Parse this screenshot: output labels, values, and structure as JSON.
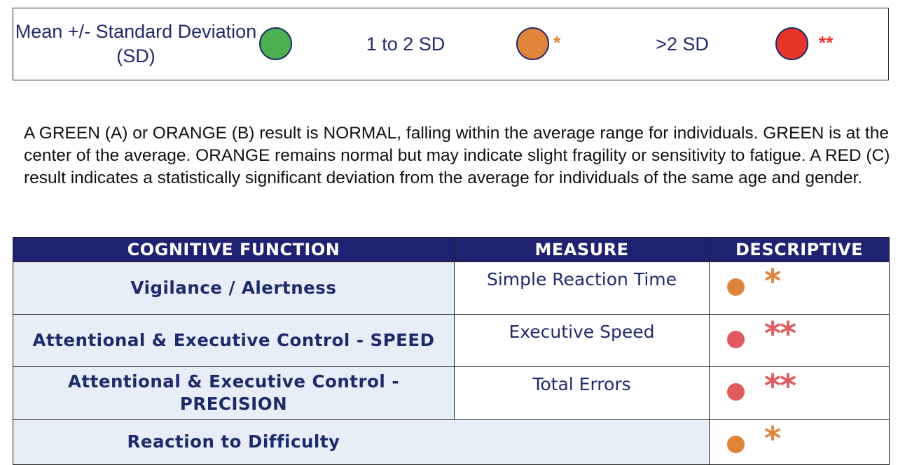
{
  "legend": {
    "items": [
      {
        "label": "Mean +/- Standard Deviation (SD)",
        "color": "#4caf50",
        "mark": "",
        "mark_color": ""
      },
      {
        "label": "1 to 2 SD",
        "color": "#e0843a",
        "mark": "*",
        "mark_color": "#e0843a"
      },
      {
        "label": ">2 SD",
        "color": "#e8352a",
        "mark": "**",
        "mark_color": "#e8352a"
      }
    ]
  },
  "note": {
    "text": "A GREEN (A) or ORANGE (B) result is NORMAL, falling within the average range for individuals. GREEN is at the center of the average. ORANGE remains normal but may indicate slight fragility or sensitivity to fatigue. A RED (C) result indicates a statistically significant deviation from the average for individuals of the same age and gender."
  },
  "table": {
    "headers": {
      "function": "COGNITIVE FUNCTION",
      "measure": "MEASURE",
      "descriptive": "DESCRIPTIVE"
    },
    "rows": [
      {
        "function": "Vigilance / Alertness",
        "measure": "Simple Reaction Time",
        "dot_color": "#e0843a",
        "mark": "*",
        "mark_color": "#e0843a"
      },
      {
        "function": "Attentional & Executive Control - SPEED",
        "measure": "Executive Speed",
        "dot_color": "#e05a5e",
        "mark": "**",
        "mark_color": "#e05a5e"
      },
      {
        "function": "Attentional & Executive Control - PRECISION",
        "measure": "Total Errors",
        "dot_color": "#e05a5e",
        "mark": "**",
        "mark_color": "#e05a5e"
      },
      {
        "function": "Reaction to Difficulty",
        "measure": "",
        "dot_color": "#e0843a",
        "mark": "*",
        "mark_color": "#e0843a"
      }
    ]
  }
}
